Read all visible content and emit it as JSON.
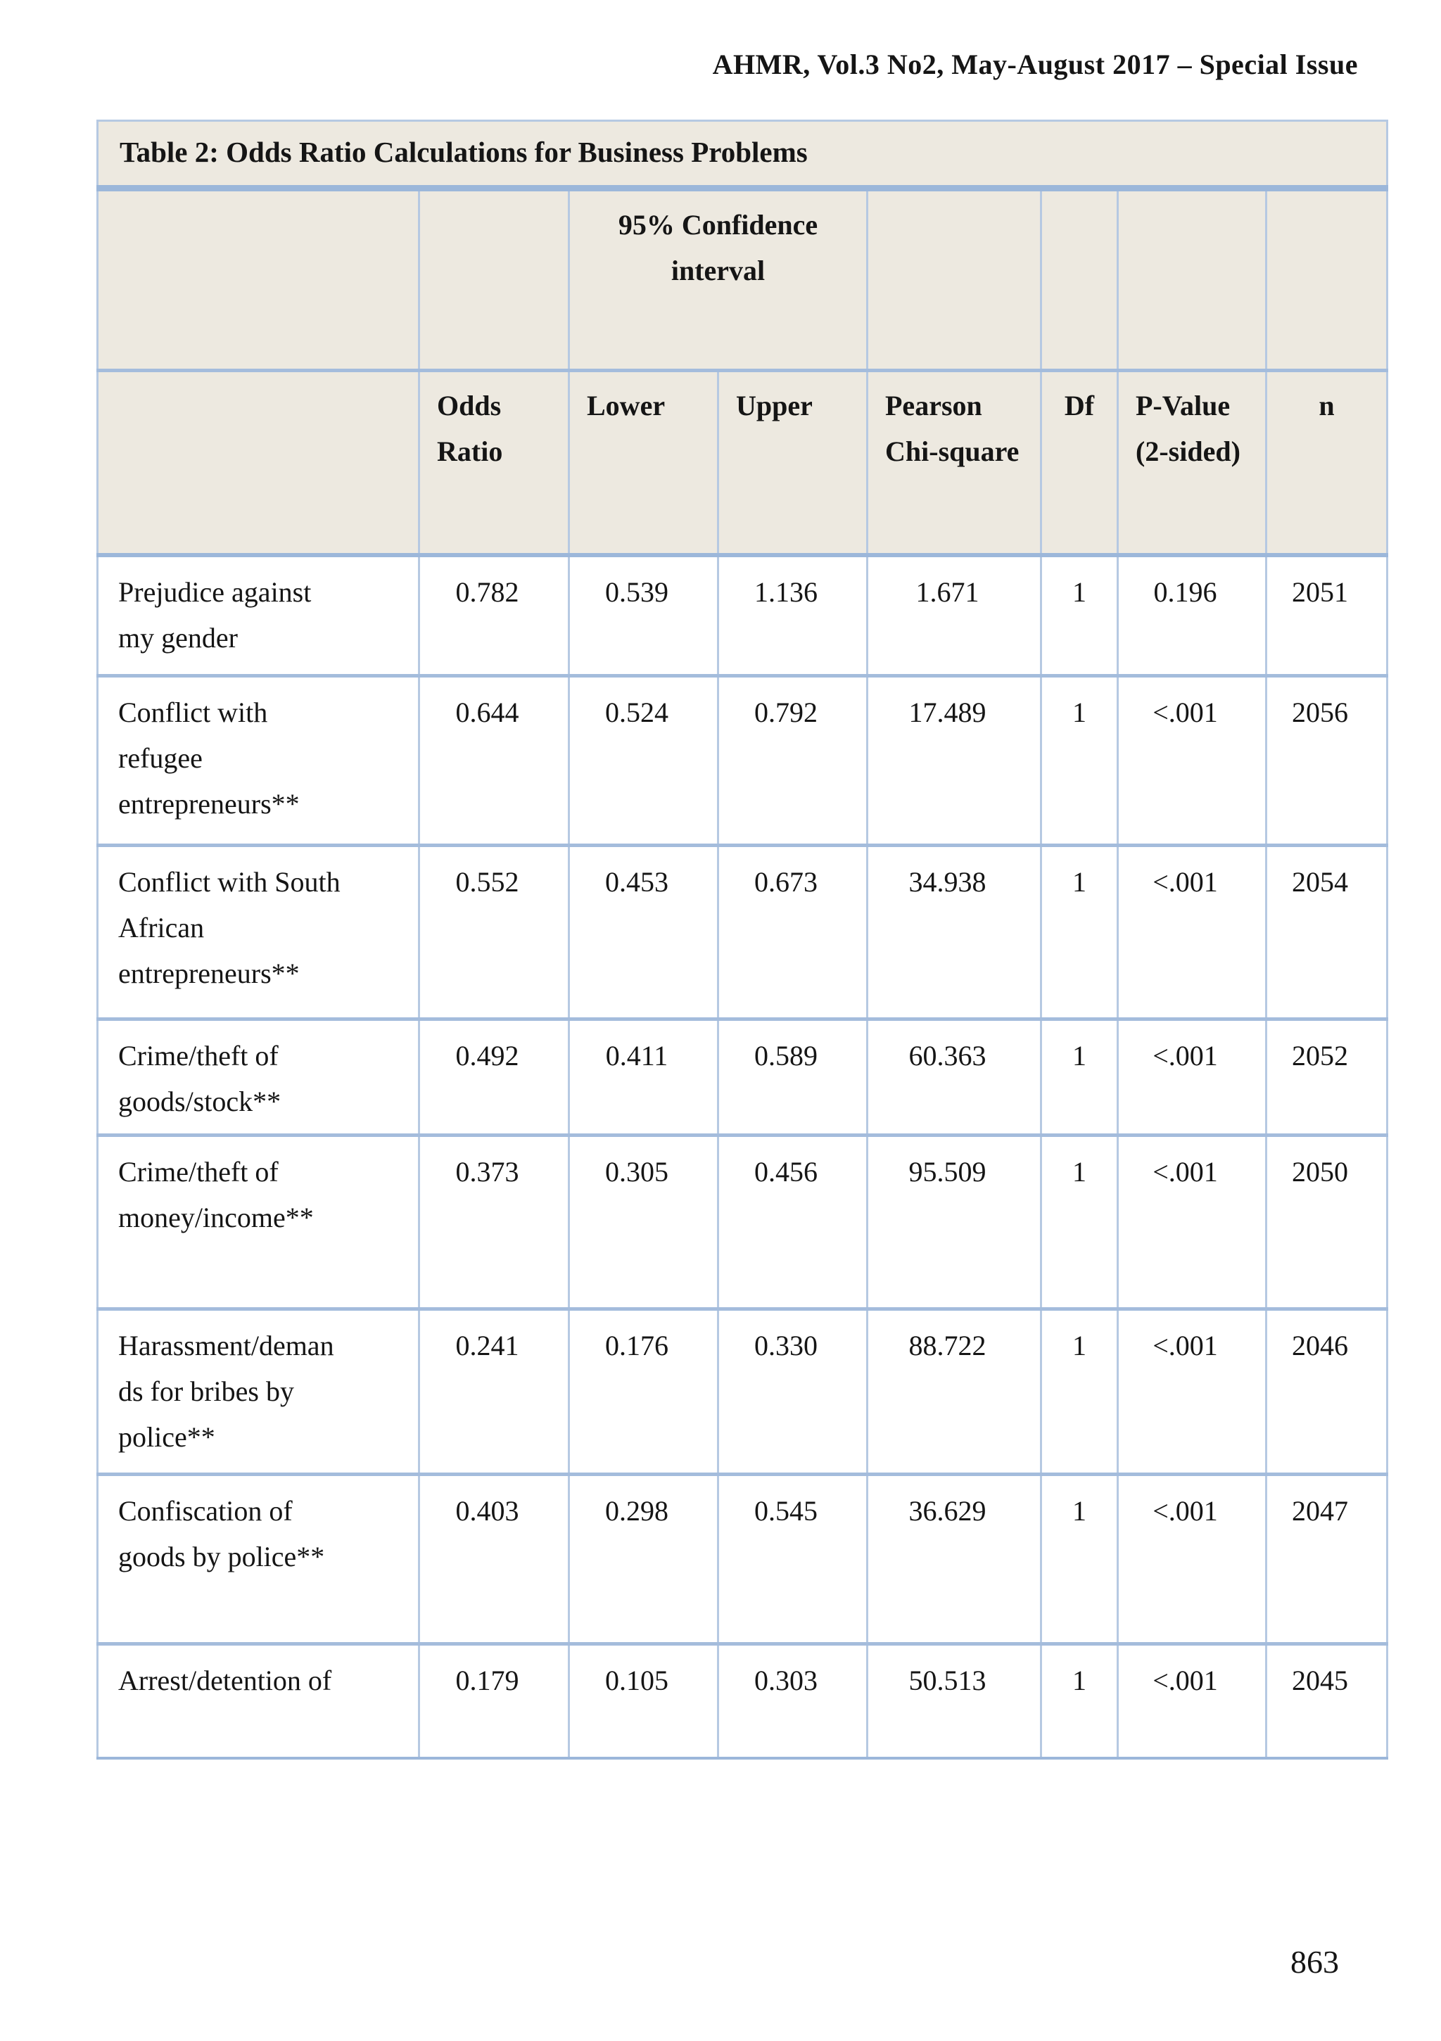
{
  "page": {
    "header": "AHMR, Vol.3 No2, May-August 2017 – Special Issue",
    "page_number": "863"
  },
  "table": {
    "title": "Table 2: Odds Ratio Calculations for Business Problems",
    "ci_header": "95% Confidence interval",
    "columns": [
      {
        "key": "odds",
        "label": "Odds Ratio"
      },
      {
        "key": "lower",
        "label": "Lower"
      },
      {
        "key": "upper",
        "label": "Upper"
      },
      {
        "key": "chi",
        "label": "Pearson Chi-square"
      },
      {
        "key": "df",
        "label": "Df"
      },
      {
        "key": "p",
        "label": "P-Value (2-sided)"
      },
      {
        "key": "n",
        "label": "n"
      }
    ],
    "rows": [
      {
        "label": "Prejudice against my gender",
        "odds": "0.782",
        "lower": "0.539",
        "upper": "1.136",
        "chi": "1.671",
        "df": "1",
        "p": "0.196",
        "n": "2051"
      },
      {
        "label": "Conflict with refugee entrepreneurs**",
        "odds": "0.644",
        "lower": "0.524",
        "upper": "0.792",
        "chi": "17.489",
        "df": "1",
        "p": "<.001",
        "n": "2056"
      },
      {
        "label": "Conflict with South African entrepreneurs**",
        "odds": "0.552",
        "lower": "0.453",
        "upper": "0.673",
        "chi": "34.938",
        "df": "1",
        "p": "<.001",
        "n": "2054"
      },
      {
        "label": "Crime/theft of goods/stock**",
        "odds": "0.492",
        "lower": "0.411",
        "upper": "0.589",
        "chi": "60.363",
        "df": "1",
        "p": "<.001",
        "n": "2052"
      },
      {
        "label": "Crime/theft of money/income**",
        "odds": "0.373",
        "lower": "0.305",
        "upper": "0.456",
        "chi": "95.509",
        "df": "1",
        "p": "<.001",
        "n": "2050"
      },
      {
        "label": "Harassment/demands for bribes by police**",
        "odds": "0.241",
        "lower": "0.176",
        "upper": "0.330",
        "chi": "88.722",
        "df": "1",
        "p": "<.001",
        "n": "2046"
      },
      {
        "label": "Confiscation of goods by police**",
        "odds": "0.403",
        "lower": "0.298",
        "upper": "0.545",
        "chi": "36.629",
        "df": "1",
        "p": "<.001",
        "n": "2047"
      },
      {
        "label": "Arrest/detention of",
        "odds": "0.179",
        "lower": "0.105",
        "upper": "0.303",
        "chi": "50.513",
        "df": "1",
        "p": "<.001",
        "n": "2045"
      }
    ]
  }
}
